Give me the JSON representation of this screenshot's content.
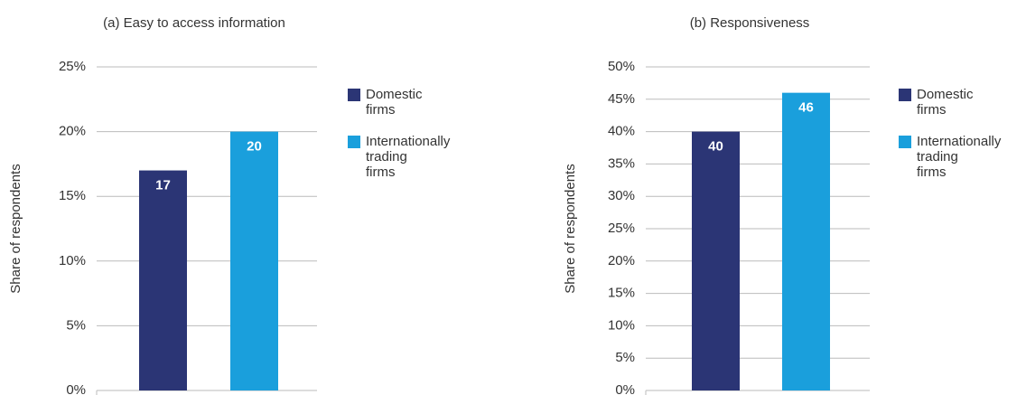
{
  "chart_data": [
    {
      "type": "bar",
      "title": "(a) Easy to access information",
      "y_label": "Share of respondents",
      "ylim": [
        0,
        25
      ],
      "yticks": [
        {
          "value": 0,
          "label": "0%"
        },
        {
          "value": 5,
          "label": "5%"
        },
        {
          "value": 10,
          "label": "10%"
        },
        {
          "value": 15,
          "label": "15%"
        },
        {
          "value": 20,
          "label": "20%"
        },
        {
          "value": 25,
          "label": "25%"
        }
      ],
      "grid": true,
      "series": [
        {
          "name": "Domestic firms",
          "color": "#2b3575",
          "values": [
            17
          ]
        },
        {
          "name": "Internationally trading firms",
          "color": "#1a9fdc",
          "values": [
            20
          ]
        }
      ]
    },
    {
      "type": "bar",
      "title": "(b) Responsiveness",
      "y_label": "Share of respondents",
      "ylim": [
        0,
        50
      ],
      "yticks": [
        {
          "value": 0,
          "label": "0%"
        },
        {
          "value": 5,
          "label": "5%"
        },
        {
          "value": 10,
          "label": "10%"
        },
        {
          "value": 15,
          "label": "15%"
        },
        {
          "value": 20,
          "label": "20%"
        },
        {
          "value": 25,
          "label": "25%"
        },
        {
          "value": 30,
          "label": "30%"
        },
        {
          "value": 35,
          "label": "35%"
        },
        {
          "value": 40,
          "label": "40%"
        },
        {
          "value": 45,
          "label": "45%"
        },
        {
          "value": 50,
          "label": "50%"
        }
      ],
      "grid": true,
      "series": [
        {
          "name": "Domestic firms",
          "color": "#2b3575",
          "values": [
            40
          ]
        },
        {
          "name": "Internationally trading firms",
          "color": "#1a9fdc",
          "values": [
            46
          ]
        }
      ]
    }
  ]
}
